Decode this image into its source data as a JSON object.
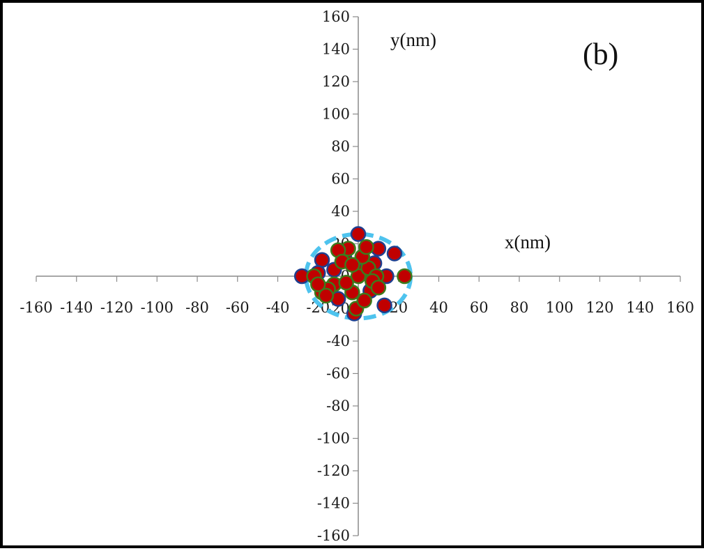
{
  "chart_data": {
    "type": "scatter",
    "panel_label": "(b)",
    "xlabel": "x(nm)",
    "ylabel": "y(nm)",
    "xlim": [
      -160,
      160
    ],
    "ylim": [
      -160,
      160
    ],
    "xticks": [
      -160,
      -140,
      -120,
      -100,
      -80,
      -60,
      -40,
      -20,
      0,
      20,
      40,
      60,
      80,
      100,
      120,
      140,
      160
    ],
    "yticks": [
      -160,
      -140,
      -120,
      -100,
      -80,
      -60,
      -40,
      -20,
      0,
      20,
      40,
      60,
      80,
      100,
      120,
      140,
      160
    ],
    "grid": false,
    "legend": "none",
    "series": [
      {
        "marker_fill": "#c00000",
        "marker_edge": "#1f3f8f",
        "points": [
          [
            -28,
            0
          ],
          [
            0,
            26
          ],
          [
            18,
            14
          ],
          [
            -2,
            -23
          ],
          [
            13,
            -18
          ],
          [
            10,
            17
          ],
          [
            14,
            0
          ],
          [
            -18,
            10
          ],
          [
            -10,
            -14
          ],
          [
            -20,
            2
          ],
          [
            -7,
            12
          ],
          [
            6,
            -9
          ],
          [
            2,
            3
          ],
          [
            -12,
            4
          ],
          [
            8,
            8
          ]
        ]
      },
      {
        "marker_fill": "#c00000",
        "marker_edge": "#3d7a1c",
        "points": [
          [
            -5,
            17
          ],
          [
            0,
            0
          ],
          [
            5,
            5
          ],
          [
            -12,
            -5
          ],
          [
            9,
            0
          ],
          [
            23,
            0
          ],
          [
            -18,
            -10
          ],
          [
            -15,
            -8
          ],
          [
            -3,
            -10
          ],
          [
            -1,
            -20
          ],
          [
            7,
            -3
          ],
          [
            -10,
            16
          ],
          [
            3,
            -15
          ],
          [
            -22,
            0
          ],
          [
            -8,
            9
          ],
          [
            -16,
            -12
          ],
          [
            2,
            12
          ],
          [
            -20,
            -5
          ],
          [
            -6,
            -4
          ],
          [
            4,
            18
          ],
          [
            10,
            -7
          ],
          [
            -3,
            7
          ]
        ]
      }
    ],
    "circle": {
      "center": [
        0,
        0
      ],
      "radius": 26,
      "color": "#4ec3ee",
      "style": "dashed"
    }
  }
}
